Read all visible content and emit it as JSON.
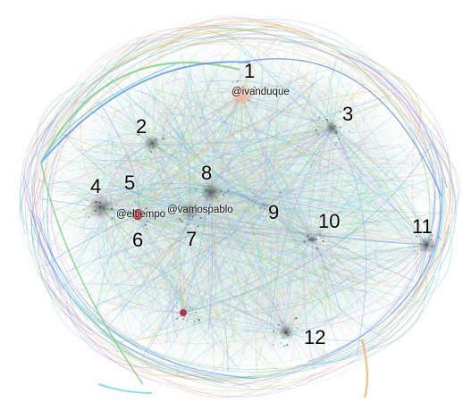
{
  "clusters": [
    {
      "number": "1"
    },
    {
      "number": "2"
    },
    {
      "number": "3"
    },
    {
      "number": "4"
    },
    {
      "number": "5"
    },
    {
      "number": "6"
    },
    {
      "number": "7"
    },
    {
      "number": "8"
    },
    {
      "number": "9"
    },
    {
      "number": "10"
    },
    {
      "number": "11"
    },
    {
      "number": "12"
    }
  ],
  "handles": {
    "ivanduque": "@ivanduque",
    "eltiempo": "@eltiempo",
    "vamospablo": "@vamospablo"
  },
  "colors": {
    "background": "#ffffff",
    "edge_green": "#7fcf7a",
    "edge_cyan": "#6fd3e8",
    "edge_blue": "#5b8fe0",
    "edge_purple": "#c59be8",
    "edge_pink": "#e7a6d8",
    "edge_orange": "#e8b45a",
    "edge_teal": "#8fd6c8",
    "node_ivanduque": "#f0b8a0",
    "node_eltiempo": "#c21f26",
    "node_dark": "#444444"
  }
}
